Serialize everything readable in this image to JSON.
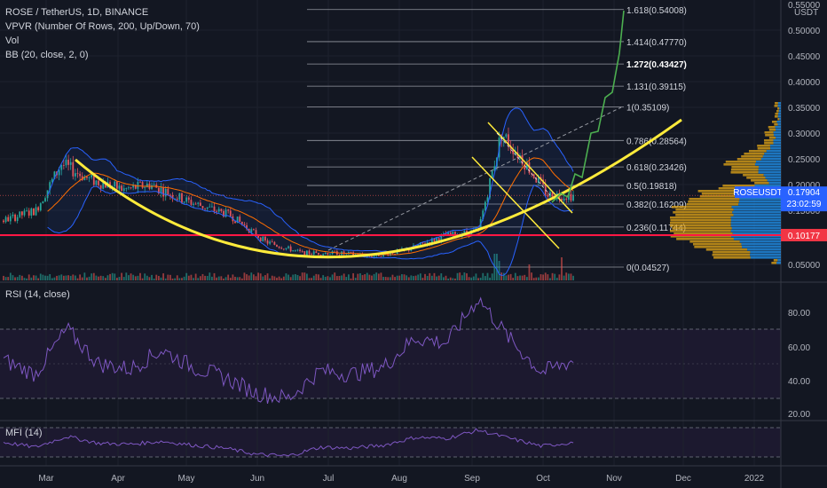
{
  "header": {
    "symbol_line": "ROSE / TetherUS, 1D, BINANCE",
    "vpvr": "VPVR (Number Of Rows, 200, Up/Down, 70)",
    "vol": "Vol",
    "bb": "BB (20, close, 2, 0)",
    "rsi": "RSI (14, close)",
    "mfi": "MFI (14)"
  },
  "axis": {
    "currency": "USDT",
    "price_ticks": [
      "0.55000",
      "0.50000",
      "0.45000",
      "0.40000",
      "0.35000",
      "0.30000",
      "0.25000",
      "0.20000",
      "0.15000",
      "0.05000"
    ],
    "rsi_ticks": [
      "80.00",
      "60.00",
      "40.00",
      "20.00"
    ],
    "months": [
      "Mar",
      "Apr",
      "May",
      "Jun",
      "Jul",
      "Aug",
      "Sep",
      "Oct",
      "Nov",
      "Dec",
      "2022"
    ]
  },
  "price_tag": {
    "symbol": "ROSEUSDT",
    "price": "0.17904",
    "countdown": "23:02:59",
    "color": "#2962ff"
  },
  "support_tag": {
    "price": "0.10177",
    "color": "#f23645"
  },
  "fib_levels": [
    {
      "label": "0(0.04527)",
      "value": 0.04527
    },
    {
      "label": "0.236(0.11744)",
      "value": 0.11744
    },
    {
      "label": "0.382(0.16209)",
      "value": 0.16209
    },
    {
      "label": "0.5(0.19818)",
      "value": 0.19818
    },
    {
      "label": "0.618(0.23426)",
      "value": 0.23426
    },
    {
      "label": "0.786(0.28564)",
      "value": 0.28564
    },
    {
      "label": "1(0.35109)",
      "value": 0.35109
    },
    {
      "label": "1.131(0.39115)",
      "value": 0.39115
    },
    {
      "label": "1.272(0.43427)",
      "value": 0.43427
    },
    {
      "label": "1.414(0.47770)",
      "value": 0.4777
    },
    {
      "label": "1.618(0.54008)",
      "value": 0.54008
    }
  ],
  "colors": {
    "up": "#26a69a",
    "down": "#ef5350",
    "bb_band": "#2962ff",
    "bb_basis": "#ff6d00",
    "curve": "#ffeb3b",
    "support": "#ff1744",
    "projection": "#4caf50",
    "osc": "#7e57c2"
  },
  "chart_data": [
    {
      "type": "candlestick",
      "name": "price",
      "series": [
        {
          "name": "ROSEUSDT",
          "x": [
            "2021-02-01",
            "2021-02-15",
            "2021-02-26",
            "2021-03-10",
            "2021-03-25",
            "2021-04-05",
            "2021-04-20",
            "2021-05-10",
            "2021-05-25",
            "2021-06-10",
            "2021-06-25",
            "2021-07-10",
            "2021-07-25",
            "2021-08-10",
            "2021-08-25",
            "2021-09-05",
            "2021-09-15",
            "2021-09-25",
            "2021-10-05"
          ],
          "values": [
            0.13,
            0.15,
            0.24,
            0.21,
            0.19,
            0.2,
            0.17,
            0.14,
            0.09,
            0.07,
            0.07,
            0.065,
            0.075,
            0.1,
            0.11,
            0.3,
            0.25,
            0.18,
            0.179
          ]
        }
      ],
      "ylim": [
        0.045,
        0.56
      ]
    },
    {
      "type": "line",
      "name": "RSI",
      "series": [
        {
          "name": "RSI",
          "values": [
            52,
            44,
            70,
            50,
            47,
            58,
            48,
            42,
            33,
            30,
            46,
            44,
            48,
            65,
            62,
            88,
            64,
            45,
            52
          ]
        }
      ],
      "ylim": [
        20,
        90
      ]
    },
    {
      "type": "line",
      "name": "MFI",
      "series": [
        {
          "name": "MFI",
          "values": [
            50,
            40,
            62,
            48,
            46,
            52,
            44,
            38,
            25,
            22,
            40,
            38,
            44,
            60,
            58,
            75,
            58,
            42,
            50
          ]
        }
      ],
      "ylim": [
        0,
        100
      ]
    }
  ]
}
